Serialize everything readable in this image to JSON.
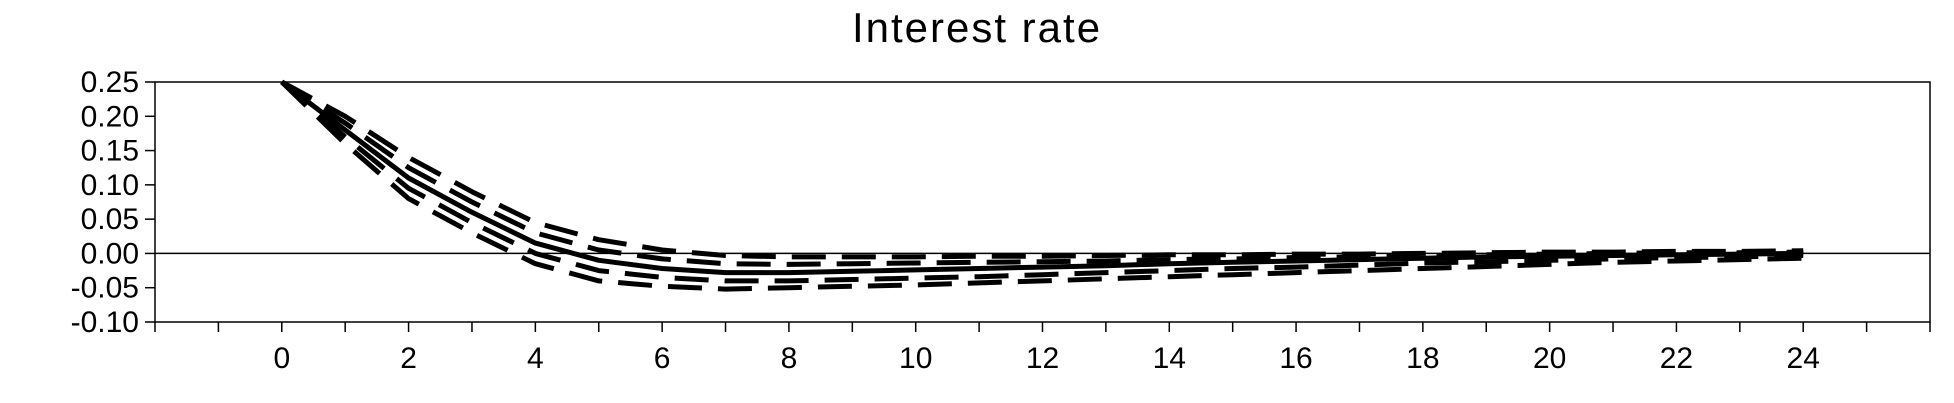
{
  "chart_data": {
    "type": "line",
    "title": "Interest rate",
    "xlabel": "",
    "ylabel": "",
    "xlim": [
      -2,
      26
    ],
    "ylim": [
      -0.1,
      0.25
    ],
    "x_ticks": [
      0,
      2,
      4,
      6,
      8,
      10,
      12,
      14,
      16,
      18,
      20,
      22,
      24
    ],
    "y_ticks": [
      "0.25",
      "0.20",
      "0.15",
      "0.10",
      "0.05",
      "0.00",
      "-0.05",
      "-0.10"
    ],
    "zero_line": true,
    "series": [
      {
        "style": "solid",
        "color": "#000000",
        "x": [
          0,
          1,
          2,
          3,
          4,
          5,
          6,
          7,
          8,
          9,
          10,
          11,
          12,
          13,
          14,
          15,
          16,
          17,
          18,
          19,
          20,
          21,
          22,
          23,
          24
        ],
        "y": [
          0.25,
          0.18,
          0.11,
          0.06,
          0.015,
          -0.01,
          -0.022,
          -0.028,
          -0.028,
          -0.026,
          -0.024,
          -0.022,
          -0.02,
          -0.018,
          -0.015,
          -0.013,
          -0.011,
          -0.009,
          -0.007,
          -0.005,
          -0.004,
          -0.003,
          -0.002,
          -0.001,
          0.0
        ]
      },
      {
        "style": "dashed",
        "color": "#000000",
        "x": [
          0,
          1,
          2,
          3,
          4,
          5,
          6,
          7,
          8,
          9,
          10,
          11,
          12,
          13,
          14,
          15,
          16,
          17,
          18,
          19,
          20,
          21,
          22,
          23,
          24
        ],
        "y": [
          0.25,
          0.2,
          0.14,
          0.09,
          0.045,
          0.02,
          0.005,
          -0.003,
          -0.005,
          -0.005,
          -0.005,
          -0.004,
          -0.004,
          -0.003,
          -0.002,
          -0.002,
          -0.001,
          -0.001,
          0.0,
          0.001,
          0.002,
          0.002,
          0.003,
          0.003,
          0.004
        ]
      },
      {
        "style": "dashed",
        "color": "#000000",
        "x": [
          0,
          1,
          2,
          3,
          4,
          5,
          6,
          7,
          8,
          9,
          10,
          11,
          12,
          13,
          14,
          15,
          16,
          17,
          18,
          19,
          20,
          21,
          22,
          23,
          24
        ],
        "y": [
          0.25,
          0.16,
          0.08,
          0.03,
          -0.015,
          -0.04,
          -0.048,
          -0.052,
          -0.05,
          -0.048,
          -0.046,
          -0.043,
          -0.04,
          -0.037,
          -0.034,
          -0.031,
          -0.028,
          -0.025,
          -0.022,
          -0.019,
          -0.016,
          -0.013,
          -0.011,
          -0.009,
          -0.007
        ]
      },
      {
        "style": "dashed",
        "color": "#000000",
        "x": [
          0,
          1,
          2,
          3,
          4,
          5,
          6,
          7,
          8,
          9,
          10,
          11,
          12,
          13,
          14,
          15,
          16,
          17,
          18,
          19,
          20,
          21,
          22,
          23,
          24
        ],
        "y": [
          0.25,
          0.19,
          0.125,
          0.075,
          0.03,
          0.005,
          -0.008,
          -0.015,
          -0.016,
          -0.015,
          -0.014,
          -0.013,
          -0.012,
          -0.011,
          -0.009,
          -0.008,
          -0.006,
          -0.005,
          -0.003,
          -0.002,
          -0.001,
          0.0,
          0.001,
          0.001,
          0.002
        ]
      },
      {
        "style": "dashed",
        "color": "#000000",
        "x": [
          0,
          1,
          2,
          3,
          4,
          5,
          6,
          7,
          8,
          9,
          10,
          11,
          12,
          13,
          14,
          15,
          16,
          17,
          18,
          19,
          20,
          21,
          22,
          23,
          24
        ],
        "y": [
          0.25,
          0.17,
          0.095,
          0.045,
          0.0,
          -0.025,
          -0.035,
          -0.04,
          -0.04,
          -0.038,
          -0.036,
          -0.034,
          -0.031,
          -0.028,
          -0.025,
          -0.022,
          -0.02,
          -0.017,
          -0.014,
          -0.012,
          -0.01,
          -0.008,
          -0.006,
          -0.005,
          -0.003
        ]
      }
    ]
  }
}
